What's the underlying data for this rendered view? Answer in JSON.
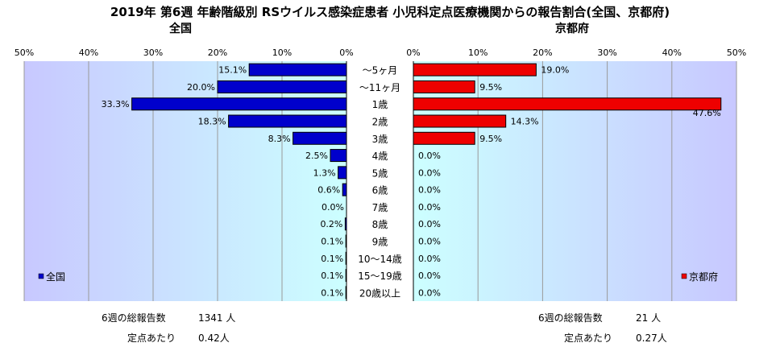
{
  "title": "2019年 第6週 年齢階級別 RSウイルス感染症患者 小児科定点医療機関からの報告割合(全国、京都府)",
  "chart_data": {
    "type": "bar",
    "orientation": "horizontal",
    "categories": [
      "～5ヶ月",
      "～11ヶ月",
      "1歳",
      "2歳",
      "3歳",
      "4歳",
      "5歳",
      "6歳",
      "7歳",
      "8歳",
      "9歳",
      "10～14歳",
      "15～19歳",
      "20歳以上"
    ],
    "xlim": [
      0,
      50
    ],
    "grid": true,
    "panels": [
      {
        "subtitle": "全国",
        "direction": "left",
        "axis_ticks": [
          "50%",
          "40%",
          "30%",
          "20%",
          "10%",
          "0%"
        ],
        "series": [
          {
            "name": "全国",
            "color": "#0000cc",
            "values": [
              15.1,
              20.0,
              33.3,
              18.3,
              8.3,
              2.5,
              1.3,
              0.6,
              0.0,
              0.2,
              0.1,
              0.1,
              0.1,
              0.1
            ],
            "labels": [
              "15.1%",
              "20.0%",
              "33.3%",
              "18.3%",
              "8.3%",
              "2.5%",
              "1.3%",
              "0.6%",
              "0.0%",
              "0.2%",
              "0.1%",
              "0.1%",
              "0.1%",
              "0.1%"
            ]
          }
        ],
        "legend": "bottom-left",
        "background": "gradient light-blue to cyan"
      },
      {
        "subtitle": "京都府",
        "direction": "right",
        "axis_ticks": [
          "0%",
          "10%",
          "20%",
          "30%",
          "40%",
          "50%"
        ],
        "series": [
          {
            "name": "京都府",
            "color": "#ee0000",
            "values": [
              19.0,
              9.5,
              47.6,
              14.3,
              9.5,
              0.0,
              0.0,
              0.0,
              0.0,
              0.0,
              0.0,
              0.0,
              0.0,
              0.0
            ],
            "labels": [
              "19.0%",
              "9.5%",
              "47.6%",
              "14.3%",
              "9.5%",
              "0.0%",
              "0.0%",
              "0.0%",
              "0.0%",
              "0.0%",
              "0.0%",
              "0.0%",
              "0.0%",
              "0.0%"
            ]
          }
        ],
        "legend": "bottom-right",
        "background": "gradient cyan to light-blue"
      }
    ]
  },
  "footer": {
    "national": {
      "total_label": "6週の総報告数",
      "total_value": "1341 人",
      "per_label": "定点あたり",
      "per_value": "0.42人"
    },
    "kyoto": {
      "total_label": "6週の総報告数",
      "total_value": "21 人",
      "per_label": "定点あたり",
      "per_value": "0.27人"
    }
  }
}
